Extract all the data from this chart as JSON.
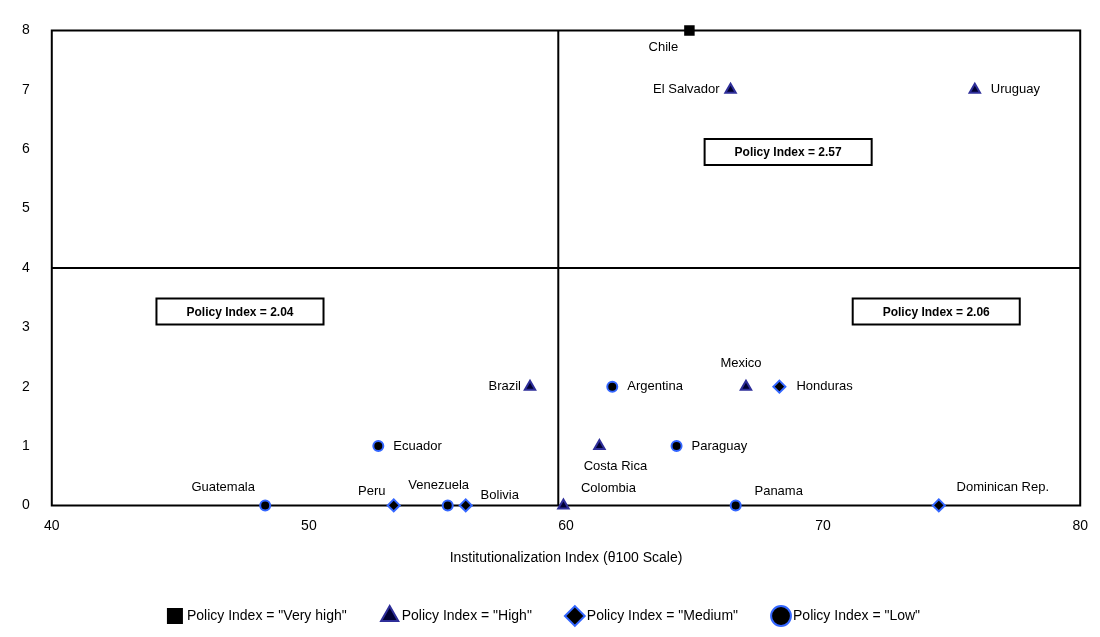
{
  "chart_data": {
    "type": "scatter",
    "xlabel": "Institutionalization Index (θ100 Scale)",
    "xlim": [
      40,
      80
    ],
    "xticks": [
      40,
      50,
      60,
      70,
      80
    ],
    "ylim": [
      0,
      8
    ],
    "yticks": [
      0,
      1,
      2,
      3,
      4,
      5,
      6,
      7,
      8
    ],
    "grid": false,
    "legend": "bottom",
    "series": [
      {
        "name": "Policy Index = \"Very high\"",
        "color": "#000000",
        "marker": "square",
        "x": [
          64.8
        ],
        "values": [
          8
        ]
      },
      {
        "name": "Policy Index = \"High\"",
        "color": "#2e2e99",
        "marker": "triangle",
        "x": [
          66.4,
          75.9,
          58.6,
          67.0,
          61.3,
          59.9
        ],
        "values": [
          7,
          7,
          2,
          2,
          1,
          0
        ]
      },
      {
        "name": "Policy Index = \"Medium\"",
        "color": "#3366ff",
        "marker": "diamond",
        "x": [
          68.3,
          53.3,
          56.1,
          74.5
        ],
        "values": [
          2,
          0,
          0,
          0
        ]
      },
      {
        "name": "Policy Index = \"Low\"",
        "color": "#3366ff",
        "marker": "circle",
        "x": [
          61.8,
          52.7,
          64.3,
          48.3,
          55.4,
          66.6
        ],
        "values": [
          2,
          1,
          1,
          0,
          0,
          0
        ]
      }
    ],
    "ref_lines": [
      {
        "axis": "x",
        "value": 59.7,
        "color": "#000000"
      },
      {
        "axis": "y",
        "value": 4,
        "color": "#000000"
      }
    ],
    "annotations": [
      {
        "text": "Chile",
        "x": 64.8,
        "y": 8
      },
      {
        "text": "El Salvador",
        "x": 66.4,
        "y": 7
      },
      {
        "text": "Uruguay",
        "x": 75.9,
        "y": 7
      },
      {
        "text": "Brazil",
        "x": 58.6,
        "y": 2
      },
      {
        "text": "Argentina",
        "x": 61.8,
        "y": 2
      },
      {
        "text": "Mexico",
        "x": 67.0,
        "y": 2
      },
      {
        "text": "Honduras",
        "x": 68.3,
        "y": 2
      },
      {
        "text": "Ecuador",
        "x": 52.7,
        "y": 1
      },
      {
        "text": "Costa Rica",
        "x": 61.3,
        "y": 1
      },
      {
        "text": "Paraguay",
        "x": 64.3,
        "y": 1
      },
      {
        "text": "Guatemala",
        "x": 48.3,
        "y": 0
      },
      {
        "text": "Peru",
        "x": 53.3,
        "y": 0
      },
      {
        "text": "Venezuela",
        "x": 55.4,
        "y": 0
      },
      {
        "text": "Bolivia",
        "x": 56.1,
        "y": 0
      },
      {
        "text": "Colombia",
        "x": 59.9,
        "y": 0
      },
      {
        "text": "Panama",
        "x": 66.6,
        "y": 0
      },
      {
        "text": "Dominican Rep.",
        "x": 74.5,
        "y": 0
      },
      "Policy Index = 2.57",
      "Policy Index = 2.04",
      "Policy Index = 2.06"
    ]
  }
}
